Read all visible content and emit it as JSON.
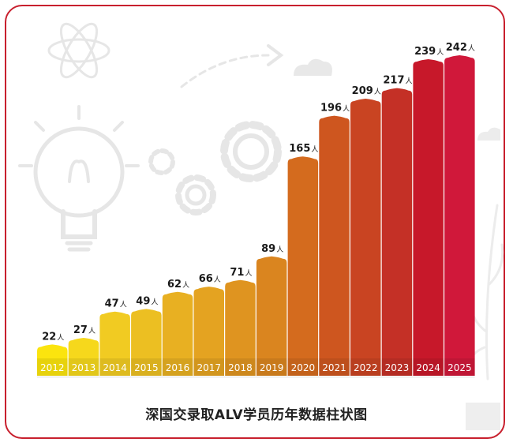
{
  "caption": "深国交录取ALV学员历年数据柱状图",
  "chart_data": {
    "type": "bar",
    "title": "深国交录取ALV学员历年数据柱状图",
    "categories": [
      "2012",
      "2013",
      "2014",
      "2015",
      "2016",
      "2017",
      "2018",
      "2019",
      "2020",
      "2021",
      "2022",
      "2023",
      "2024",
      "2025"
    ],
    "values": [
      22,
      27,
      47,
      49,
      62,
      66,
      71,
      89,
      165,
      196,
      209,
      217,
      239,
      242
    ],
    "unit": "人",
    "ylim": [
      0,
      250
    ],
    "grid": false,
    "colors": [
      "#fbe40e",
      "#f6d81c",
      "#f1cb22",
      "#ecbf22",
      "#e8b022",
      "#e4a321",
      "#df9420",
      "#da851f",
      "#d46b1e",
      "#ce561f",
      "#c94422",
      "#c43026",
      "#c7182a",
      "#d0183a"
    ]
  }
}
